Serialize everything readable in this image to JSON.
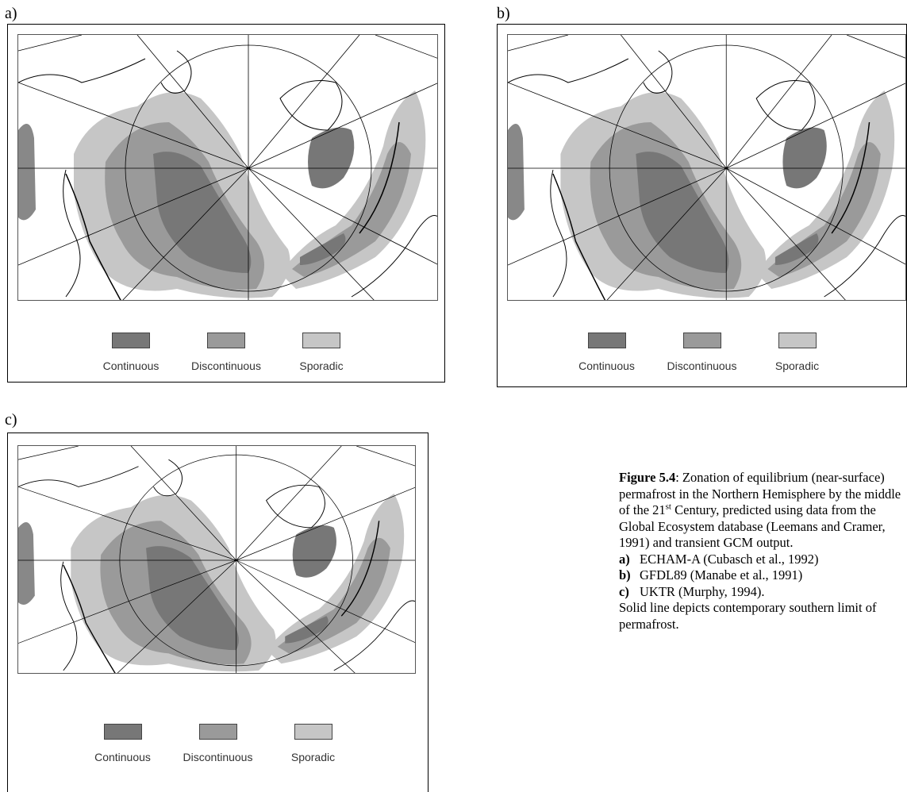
{
  "panels": [
    {
      "label": "a)",
      "legend": [
        {
          "label": "Continuous",
          "color": "#777777"
        },
        {
          "label": "Discontinuous",
          "color": "#9a9a9a"
        },
        {
          "label": "Sporadic",
          "color": "#c6c6c6"
        }
      ]
    },
    {
      "label": "b)",
      "legend": [
        {
          "label": "Continuous",
          "color": "#777777"
        },
        {
          "label": "Discontinuous",
          "color": "#9a9a9a"
        },
        {
          "label": "Sporadic",
          "color": "#c6c6c6"
        }
      ]
    },
    {
      "label": "c)",
      "legend": [
        {
          "label": "Continuous",
          "color": "#777777"
        },
        {
          "label": "Discontinuous",
          "color": "#9a9a9a"
        },
        {
          "label": "Sporadic",
          "color": "#c6c6c6"
        }
      ]
    }
  ],
  "caption": {
    "figure_label": "Figure 5.4",
    "text_before_sup": ": Zonation of equilibrium (near-surface) permafrost in the Northern Hemisphere by the middle of the 21",
    "sup": "st",
    "text_after_sup": " Century, predicted using data from the Global Ecosystem database (Leemans and Cramer, 1991) and transient GCM output.",
    "items": [
      {
        "label": "a)",
        "text": "ECHAM-A (Cubasch et al., 1992)"
      },
      {
        "label": "b)",
        "text": "GFDL89 (Manabe et al., 1991)"
      },
      {
        "label": "c)",
        "text": "UKTR (Murphy, 1994)."
      }
    ],
    "note": "Solid line depicts contemporary southern limit of permafrost."
  }
}
